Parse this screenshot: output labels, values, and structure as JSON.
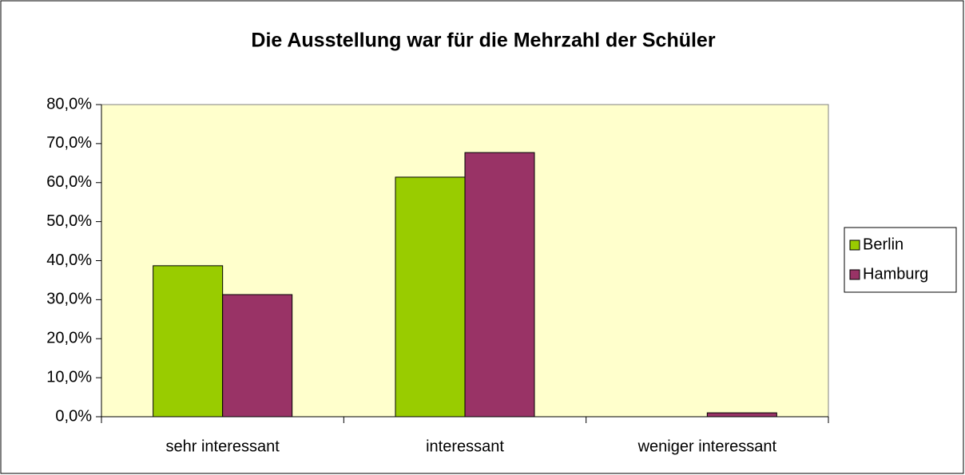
{
  "chart_data": {
    "type": "bar",
    "title": "Die Ausstellung war für die Mehrzahl der Schüler",
    "categories": [
      "sehr interessant",
      "interessant",
      "weniger interessant"
    ],
    "series": [
      {
        "name": "Berlin",
        "color": "#99cc00",
        "values": [
          38.7,
          61.4,
          0
        ]
      },
      {
        "name": "Hamburg",
        "color": "#993366",
        "values": [
          31.3,
          67.7,
          1.0
        ]
      }
    ],
    "ylim": [
      0,
      80
    ],
    "yticks": [
      {
        "value": 0,
        "label": "0,0%"
      },
      {
        "value": 10,
        "label": "10,0%"
      },
      {
        "value": 20,
        "label": "20,0%"
      },
      {
        "value": 30,
        "label": "30,0%"
      },
      {
        "value": 40,
        "label": "40,0%"
      },
      {
        "value": 50,
        "label": "50,0%"
      },
      {
        "value": 60,
        "label": "60,0%"
      },
      {
        "value": 70,
        "label": "70,0%"
      },
      {
        "value": 80,
        "label": "80,0%"
      }
    ],
    "legend": "right",
    "plot_background": "#ffffcc"
  }
}
